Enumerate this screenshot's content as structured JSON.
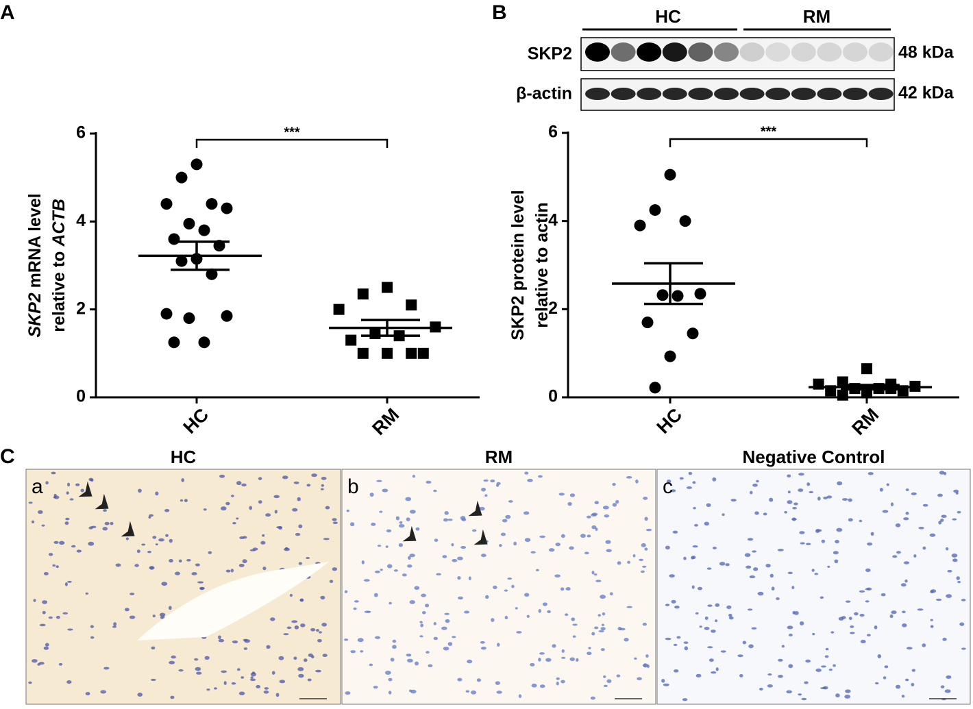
{
  "panel_labels": [
    "A",
    "B",
    "C"
  ],
  "chart_data": [
    {
      "type": "strip",
      "categories": [
        "HC",
        "RM"
      ],
      "ylabel": [
        [
          {
            "text": "SKP2",
            "italic": true
          },
          {
            "text": "mRNA level",
            "italic": false
          }
        ],
        [
          {
            "text": "relative to",
            "italic": false
          },
          {
            "text": "ACTB",
            "italic": true
          }
        ]
      ],
      "ylim": [
        0,
        6
      ],
      "yticks": [
        0,
        2,
        4,
        6
      ],
      "annotation": "***",
      "groups": [
        {
          "marker": "circle",
          "color": "#000000",
          "values": [
            5.3,
            5.0,
            4.4,
            4.4,
            4.3,
            3.95,
            3.8,
            3.6,
            3.45,
            3.15,
            3.1,
            2.8,
            1.9,
            1.85,
            1.8,
            1.25,
            1.25
          ],
          "mean": 3.22,
          "sem": 0.32
        },
        {
          "marker": "square",
          "color": "#000000",
          "values": [
            2.5,
            2.35,
            2.1,
            2.0,
            1.6,
            1.45,
            1.4,
            1.3,
            1.0,
            1.0,
            1.0,
            1.0
          ],
          "mean": 1.58,
          "sem": 0.18
        }
      ]
    },
    {
      "type": "strip",
      "categories": [
        "HC",
        "RM"
      ],
      "ylabel": [
        [
          {
            "text": "SKP2 protein level",
            "italic": false
          }
        ],
        [
          {
            "text": "relative to actin",
            "italic": false
          }
        ]
      ],
      "ylim": [
        0,
        6
      ],
      "yticks": [
        0,
        2,
        4,
        6
      ],
      "annotation": "***",
      "groups": [
        {
          "marker": "circle",
          "color": "#000000",
          "values": [
            5.05,
            4.25,
            4.0,
            3.9,
            2.35,
            2.32,
            2.3,
            1.7,
            1.45,
            0.93,
            0.22
          ],
          "mean": 2.58,
          "sem": 0.46
        },
        {
          "marker": "square",
          "color": "#000000",
          "values": [
            0.65,
            0.35,
            0.3,
            0.3,
            0.25,
            0.2,
            0.2,
            0.15,
            0.15,
            0.1,
            0.05,
            0.2
          ],
          "mean": 0.23,
          "sem": 0.05
        }
      ]
    }
  ],
  "blot": {
    "groups": [
      "HC",
      "RM"
    ],
    "rows": [
      {
        "label": "SKP2",
        "size": "48 kDa"
      },
      {
        "label": "β-actin",
        "size": "42 kDa"
      }
    ]
  },
  "micrographs": [
    {
      "title": "HC",
      "tag": "a"
    },
    {
      "title": "RM",
      "tag": "b"
    },
    {
      "title": "Negative Control",
      "tag": "c"
    }
  ]
}
